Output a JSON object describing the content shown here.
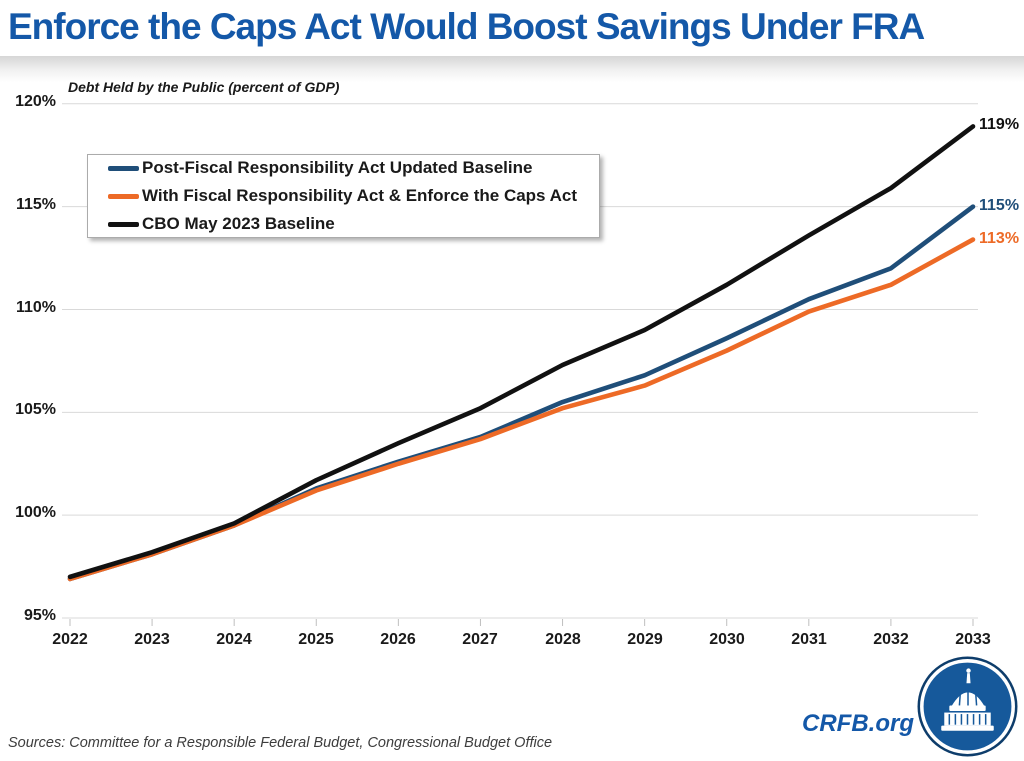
{
  "title": "Enforce the Caps Act Would Boost Savings Under FRA",
  "source_note": "Sources: Committee for a Responsible Federal Budget, Congressional Budget Office",
  "branding": {
    "site": "CRFB.org",
    "logo": "capitol-dome-badge"
  },
  "colors": {
    "title_blue": "#1458A8",
    "post_fra_blue": "#1F4E79",
    "caps_act_orange": "#ED6A26",
    "cbo_baseline_black": "#111111",
    "gridline": "#D9D9D9",
    "tick_mark": "#BFBFBF",
    "source_gray": "#3d3d3d",
    "logo_fill": "#16599B",
    "logo_ring": "#0E3D6B"
  },
  "chart_data": {
    "type": "line",
    "title": "Enforce the Caps Act Would Boost Savings Under FRA",
    "subtitle": "Debt Held by the Public (percent of GDP)",
    "xlabel": "",
    "ylabel": "Debt Held by the Public (percent of GDP)",
    "ylim": [
      95,
      120
    ],
    "grid": true,
    "legend_position": "top-left",
    "x": [
      2022,
      2023,
      2024,
      2025,
      2026,
      2027,
      2028,
      2029,
      2030,
      2031,
      2032,
      2033
    ],
    "x_tick_labels": [
      "2022",
      "2023",
      "2024",
      "2025",
      "2026",
      "2027",
      "2028",
      "2029",
      "2030",
      "2031",
      "2032",
      "2033"
    ],
    "y_tick_labels": [
      "120%",
      "115%",
      "110%",
      "105%",
      "100%",
      "95%"
    ],
    "y_tick_values": [
      120,
      115,
      110,
      105,
      100,
      95
    ],
    "series": [
      {
        "name": "Post-Fiscal Responsibility Act Updated Baseline",
        "color": "#1F4E79",
        "end_label": "115%",
        "values": [
          96.9,
          98.1,
          99.5,
          101.3,
          102.6,
          103.8,
          105.5,
          106.8,
          108.6,
          110.5,
          112.0,
          115.0
        ]
      },
      {
        "name": "With Fiscal Responsibility Act & Enforce the Caps Act",
        "color": "#ED6A26",
        "end_label": "113%",
        "values": [
          96.9,
          98.1,
          99.5,
          101.2,
          102.5,
          103.7,
          105.2,
          106.3,
          108.0,
          109.9,
          111.2,
          113.4
        ]
      },
      {
        "name": "CBO May 2023 Baseline",
        "color": "#111111",
        "end_label": "119%",
        "values": [
          97.0,
          98.2,
          99.6,
          101.7,
          103.5,
          105.2,
          107.3,
          109.0,
          111.2,
          113.6,
          115.9,
          118.9
        ]
      }
    ]
  }
}
